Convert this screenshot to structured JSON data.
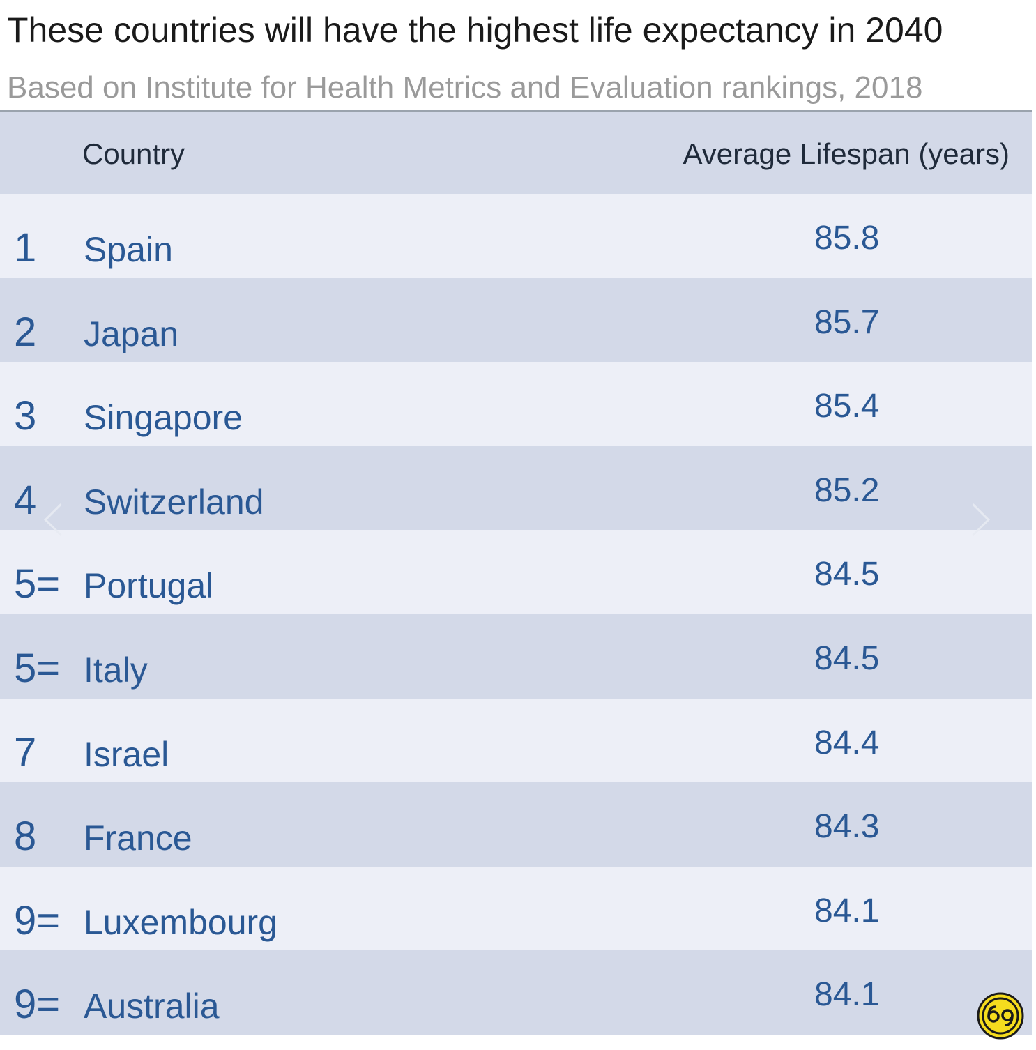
{
  "header": {
    "title": "These countries will have the highest life expectancy in 2040",
    "subtitle": "Based on Institute for Health Metrics and Evaluation rankings, 2018"
  },
  "chart_data": {
    "type": "table",
    "columns": [
      "Country",
      "Average Lifespan (years)"
    ],
    "rows": [
      {
        "rank": "1",
        "country": "Spain",
        "value": "85.8"
      },
      {
        "rank": "2",
        "country": "Japan",
        "value": "85.7"
      },
      {
        "rank": "3",
        "country": "Singapore",
        "value": "85.4"
      },
      {
        "rank": "4",
        "country": "Switzerland",
        "value": "85.2"
      },
      {
        "rank": "5=",
        "country": "Portugal",
        "value": "84.5"
      },
      {
        "rank": "5=",
        "country": "Italy",
        "value": "84.5"
      },
      {
        "rank": "7",
        "country": "Israel",
        "value": "84.4"
      },
      {
        "rank": "8",
        "country": "France",
        "value": "84.3"
      },
      {
        "rank": "9=",
        "country": "Luxembourg",
        "value": "84.1"
      },
      {
        "rank": "9=",
        "country": "Australia",
        "value": "84.1"
      }
    ]
  },
  "icons": {
    "prev": "chevron-left-icon",
    "next": "chevron-right-icon",
    "logo": "watermark-logo-icon"
  },
  "colors": {
    "accent_text": "#2a5894",
    "header_band": "#d3d9e8",
    "row_light": "#edeff7",
    "logo_yellow": "#f5dc1e"
  }
}
